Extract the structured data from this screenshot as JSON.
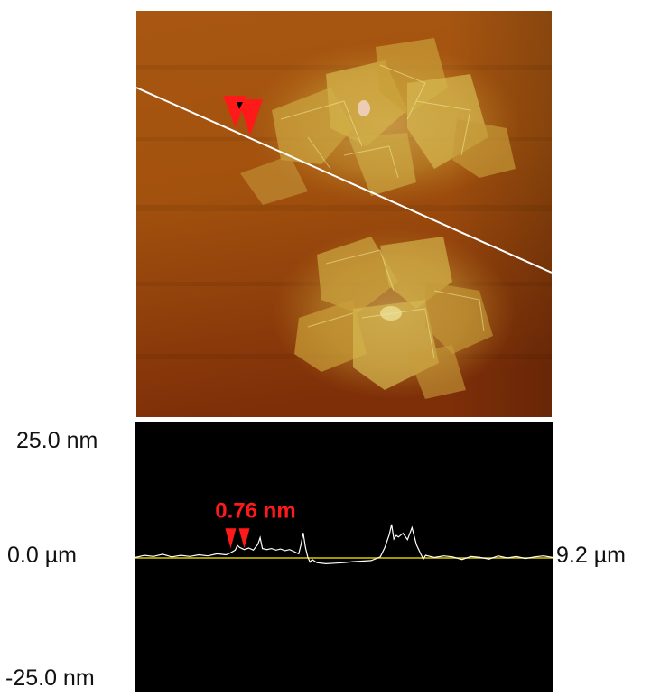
{
  "image_panel": {
    "colormap": {
      "low": "#7a2a06",
      "mid": "#b8650e",
      "high": "#e8e07a"
    },
    "scan_line_color": "#ffffff",
    "marker_color": "#ff1a1a"
  },
  "axis_labels": {
    "y_max": "25.0 nm",
    "y_min": "-25.0 nm",
    "x_min": "0.0 µm",
    "x_max": "9.2 µm"
  },
  "chart_data": {
    "type": "line",
    "title": "",
    "xlabel": "",
    "ylabel": "",
    "x_unit": "µm",
    "y_unit": "nm",
    "xlim": [
      0,
      9.2
    ],
    "ylim": [
      -25,
      25
    ],
    "background": "#000000",
    "baseline": {
      "y": 0,
      "color": "#d8c800"
    },
    "series": [
      {
        "color": "#ffffff",
        "x": [
          0.0,
          0.2,
          0.4,
          0.6,
          0.8,
          1.0,
          1.2,
          1.4,
          1.6,
          1.8,
          2.0,
          2.1,
          2.2,
          2.25,
          2.3,
          2.4,
          2.5,
          2.6,
          2.7,
          2.75,
          2.8,
          2.9,
          3.0,
          3.1,
          3.2,
          3.3,
          3.4,
          3.5,
          3.6,
          3.65,
          3.7,
          3.75,
          3.8,
          3.85,
          3.9,
          4.0,
          4.2,
          4.4,
          4.6,
          4.8,
          5.0,
          5.2,
          5.4,
          5.5,
          5.6,
          5.65,
          5.7,
          5.75,
          5.8,
          5.9,
          6.0,
          6.1,
          6.15,
          6.2,
          6.3,
          6.35,
          6.4,
          6.5,
          6.6,
          6.8,
          7.0,
          7.2,
          7.4,
          7.6,
          7.8,
          8.0,
          8.2,
          8.4,
          8.6,
          8.8,
          9.0,
          9.2
        ],
        "values": [
          0.1,
          0.5,
          0.3,
          0.7,
          0.2,
          0.5,
          0.3,
          0.6,
          0.4,
          0.8,
          0.6,
          1.0,
          1.5,
          2.4,
          2.0,
          1.6,
          1.9,
          1.5,
          2.6,
          3.9,
          1.8,
          1.6,
          1.8,
          1.5,
          1.7,
          1.4,
          1.6,
          1.2,
          0.8,
          2.5,
          4.8,
          2.0,
          0.2,
          -0.8,
          -0.3,
          -0.9,
          -1.1,
          -1.0,
          -0.9,
          -0.7,
          -0.6,
          -0.5,
          0.2,
          2.0,
          4.5,
          6.4,
          3.6,
          4.3,
          4.0,
          4.7,
          3.5,
          5.8,
          4.1,
          2.5,
          0.6,
          -0.2,
          0.5,
          0.3,
          0.1,
          0.4,
          0.2,
          -0.3,
          0.3,
          0.1,
          -0.2,
          0.4,
          0.0,
          0.3,
          -0.1,
          0.2,
          0.4,
          0.1
        ]
      }
    ],
    "annotations": [
      {
        "text": "0.76 nm",
        "color": "#ff1a1a",
        "markers_x": [
          2.1,
          2.4
        ],
        "marker_y": 1.5
      }
    ]
  }
}
